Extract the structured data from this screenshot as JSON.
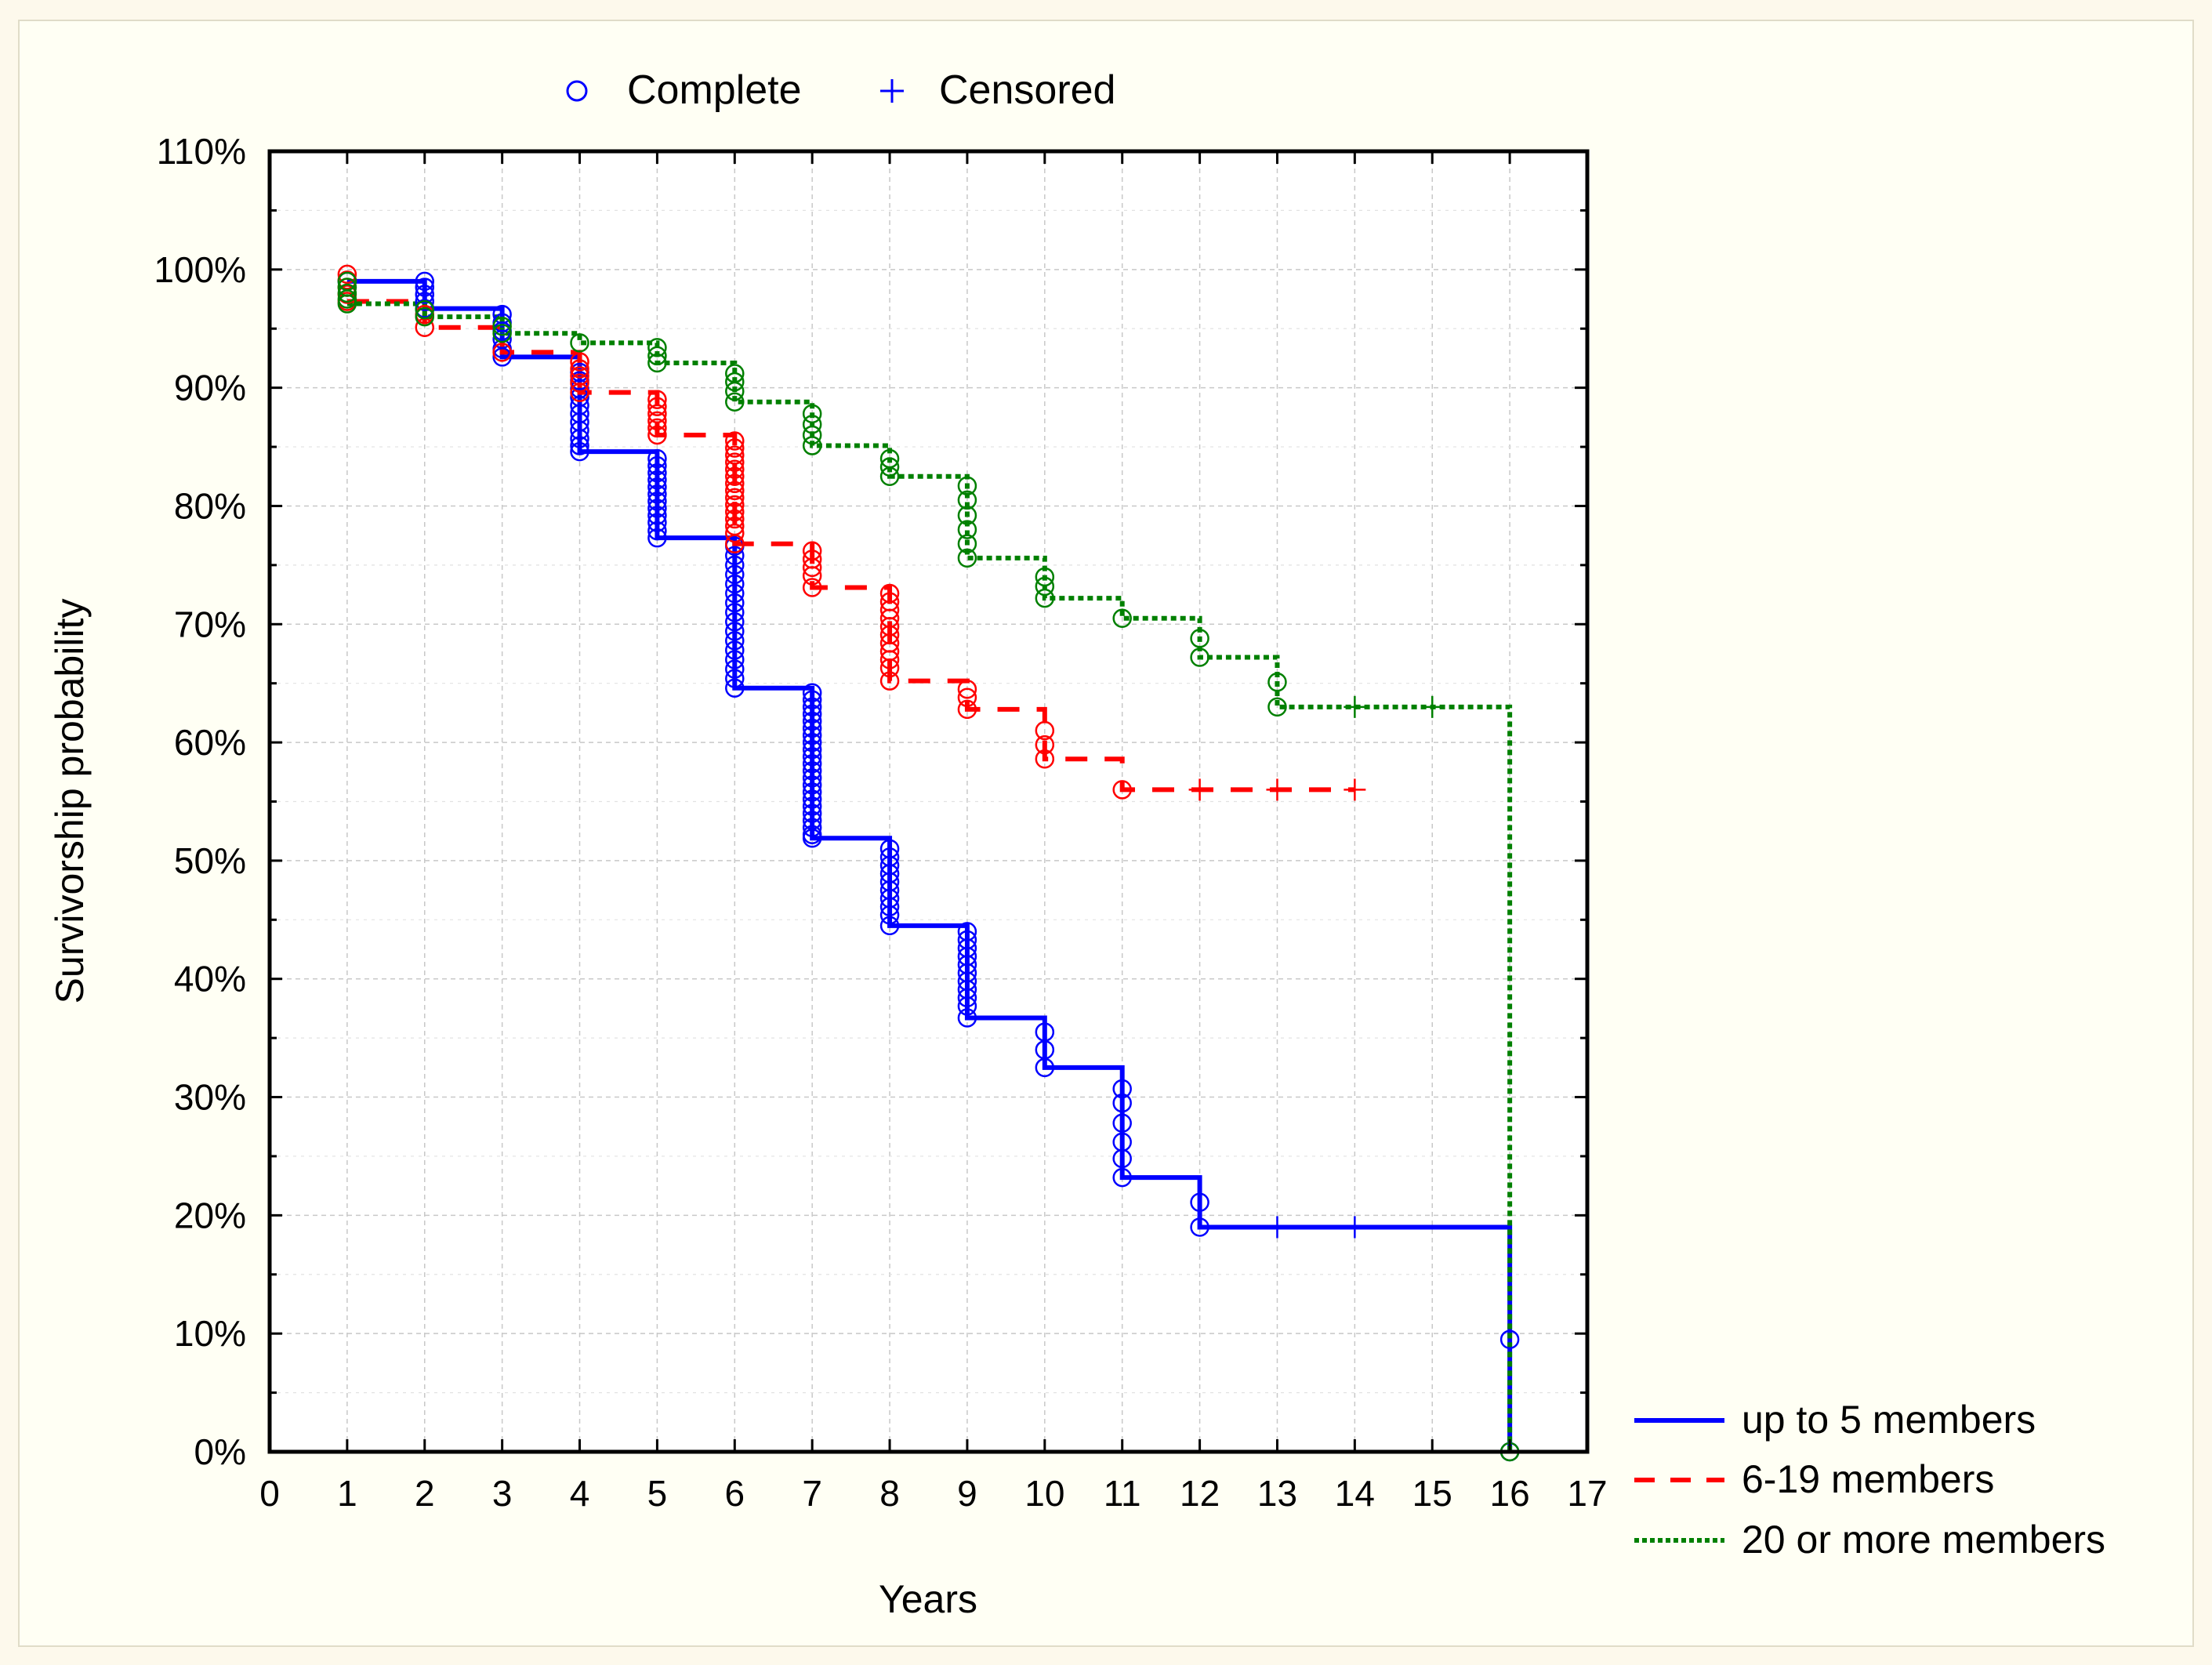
{
  "chart_data": {
    "type": "line",
    "subtype": "kaplan-meier survival (step)",
    "title": "",
    "xlabel": "Years",
    "ylabel": "Survivorship probability",
    "xlim": [
      0,
      17
    ],
    "ylim": [
      0,
      1.1
    ],
    "x_ticks": [
      0,
      1,
      2,
      3,
      4,
      5,
      6,
      7,
      8,
      9,
      10,
      11,
      12,
      13,
      14,
      15,
      16,
      17
    ],
    "y_ticks": [
      0,
      0.1,
      0.2,
      0.3,
      0.4,
      0.5,
      0.6,
      0.7,
      0.8,
      0.9,
      1.0,
      1.1
    ],
    "y_tick_labels": [
      "0%",
      "10%",
      "20%",
      "30%",
      "40%",
      "50%",
      "60%",
      "70%",
      "80%",
      "90%",
      "100%",
      "110%"
    ],
    "grid": true,
    "legend_markers": {
      "complete": "Complete",
      "censored": "Censored",
      "placement": "top"
    },
    "series_legend_placement": "bottom-right",
    "series": [
      {
        "name": "up to 5 members",
        "color": "#0000ff",
        "line_style": "solid",
        "steps": [
          [
            1,
            0.99
          ],
          [
            2,
            0.967
          ],
          [
            3,
            0.926
          ],
          [
            4,
            0.846
          ],
          [
            5,
            0.773
          ],
          [
            6,
            0.646
          ],
          [
            7,
            0.519
          ],
          [
            8,
            0.445
          ],
          [
            9,
            0.367
          ],
          [
            10,
            0.325
          ],
          [
            11,
            0.232
          ],
          [
            12,
            0.19
          ],
          [
            16,
            0.0
          ]
        ],
        "complete": [
          [
            1,
            0.99
          ],
          [
            2,
            0.99
          ],
          [
            2,
            0.985
          ],
          [
            2,
            0.979
          ],
          [
            2,
            0.973
          ],
          [
            2,
            0.967
          ],
          [
            3,
            0.962
          ],
          [
            3,
            0.955
          ],
          [
            3,
            0.948
          ],
          [
            3,
            0.941
          ],
          [
            3,
            0.933
          ],
          [
            3,
            0.926
          ],
          [
            4,
            0.913
          ],
          [
            4,
            0.906
          ],
          [
            4,
            0.899
          ],
          [
            4,
            0.892
          ],
          [
            4,
            0.885
          ],
          [
            4,
            0.878
          ],
          [
            4,
            0.871
          ],
          [
            4,
            0.864
          ],
          [
            4,
            0.857
          ],
          [
            4,
            0.851
          ],
          [
            4,
            0.846
          ],
          [
            5,
            0.84
          ],
          [
            5,
            0.834
          ],
          [
            5,
            0.828
          ],
          [
            5,
            0.822
          ],
          [
            5,
            0.816
          ],
          [
            5,
            0.81
          ],
          [
            5,
            0.804
          ],
          [
            5,
            0.798
          ],
          [
            5,
            0.792
          ],
          [
            5,
            0.786
          ],
          [
            5,
            0.779
          ],
          [
            5,
            0.773
          ],
          [
            6,
            0.766
          ],
          [
            6,
            0.758
          ],
          [
            6,
            0.75
          ],
          [
            6,
            0.742
          ],
          [
            6,
            0.734
          ],
          [
            6,
            0.726
          ],
          [
            6,
            0.718
          ],
          [
            6,
            0.71
          ],
          [
            6,
            0.702
          ],
          [
            6,
            0.694
          ],
          [
            6,
            0.686
          ],
          [
            6,
            0.678
          ],
          [
            6,
            0.67
          ],
          [
            6,
            0.662
          ],
          [
            6,
            0.654
          ],
          [
            6,
            0.646
          ],
          [
            7,
            0.642
          ],
          [
            7,
            0.636
          ],
          [
            7,
            0.63
          ],
          [
            7,
            0.624
          ],
          [
            7,
            0.618
          ],
          [
            7,
            0.612
          ],
          [
            7,
            0.606
          ],
          [
            7,
            0.6
          ],
          [
            7,
            0.594
          ],
          [
            7,
            0.588
          ],
          [
            7,
            0.582
          ],
          [
            7,
            0.576
          ],
          [
            7,
            0.57
          ],
          [
            7,
            0.564
          ],
          [
            7,
            0.558
          ],
          [
            7,
            0.552
          ],
          [
            7,
            0.546
          ],
          [
            7,
            0.54
          ],
          [
            7,
            0.534
          ],
          [
            7,
            0.528
          ],
          [
            7,
            0.522
          ],
          [
            7,
            0.519
          ],
          [
            8,
            0.51
          ],
          [
            8,
            0.503
          ],
          [
            8,
            0.496
          ],
          [
            8,
            0.489
          ],
          [
            8,
            0.482
          ],
          [
            8,
            0.475
          ],
          [
            8,
            0.468
          ],
          [
            8,
            0.461
          ],
          [
            8,
            0.454
          ],
          [
            8,
            0.445
          ],
          [
            9,
            0.44
          ],
          [
            9,
            0.433
          ],
          [
            9,
            0.426
          ],
          [
            9,
            0.419
          ],
          [
            9,
            0.412
          ],
          [
            9,
            0.405
          ],
          [
            9,
            0.398
          ],
          [
            9,
            0.391
          ],
          [
            9,
            0.384
          ],
          [
            9,
            0.377
          ],
          [
            9,
            0.367
          ],
          [
            10,
            0.355
          ],
          [
            10,
            0.34
          ],
          [
            10,
            0.325
          ],
          [
            11,
            0.307
          ],
          [
            11,
            0.295
          ],
          [
            11,
            0.278
          ],
          [
            11,
            0.262
          ],
          [
            11,
            0.248
          ],
          [
            11,
            0.232
          ],
          [
            12,
            0.211
          ],
          [
            12,
            0.19
          ],
          [
            16,
            0.095
          ],
          [
            16,
            0.0
          ]
        ],
        "censored": [
          [
            13,
            0.19
          ],
          [
            14,
            0.19
          ]
        ]
      },
      {
        "name": "6-19 members",
        "color": "#ff0000",
        "line_style": "dashed",
        "steps": [
          [
            1,
            0.973
          ],
          [
            2,
            0.951
          ],
          [
            3,
            0.93
          ],
          [
            4,
            0.896
          ],
          [
            5,
            0.86
          ],
          [
            6,
            0.768
          ],
          [
            7,
            0.731
          ],
          [
            8,
            0.652
          ],
          [
            9,
            0.628
          ],
          [
            10,
            0.586
          ],
          [
            11,
            0.56
          ]
        ],
        "complete": [
          [
            1,
            0.996
          ],
          [
            1,
            0.991
          ],
          [
            1,
            0.985
          ],
          [
            1,
            0.979
          ],
          [
            1,
            0.973
          ],
          [
            2,
            0.962
          ],
          [
            2,
            0.951
          ],
          [
            3,
            0.93
          ],
          [
            4,
            0.922
          ],
          [
            4,
            0.916
          ],
          [
            4,
            0.91
          ],
          [
            4,
            0.904
          ],
          [
            4,
            0.896
          ],
          [
            5,
            0.89
          ],
          [
            5,
            0.884
          ],
          [
            5,
            0.878
          ],
          [
            5,
            0.872
          ],
          [
            5,
            0.866
          ],
          [
            5,
            0.86
          ],
          [
            6,
            0.855
          ],
          [
            6,
            0.849
          ],
          [
            6,
            0.843
          ],
          [
            6,
            0.837
          ],
          [
            6,
            0.831
          ],
          [
            6,
            0.825
          ],
          [
            6,
            0.819
          ],
          [
            6,
            0.813
          ],
          [
            6,
            0.807
          ],
          [
            6,
            0.801
          ],
          [
            6,
            0.795
          ],
          [
            6,
            0.789
          ],
          [
            6,
            0.783
          ],
          [
            6,
            0.777
          ],
          [
            6,
            0.768
          ],
          [
            7,
            0.762
          ],
          [
            7,
            0.755
          ],
          [
            7,
            0.748
          ],
          [
            7,
            0.741
          ],
          [
            7,
            0.731
          ],
          [
            8,
            0.726
          ],
          [
            8,
            0.719
          ],
          [
            8,
            0.712
          ],
          [
            8,
            0.705
          ],
          [
            8,
            0.698
          ],
          [
            8,
            0.691
          ],
          [
            8,
            0.684
          ],
          [
            8,
            0.677
          ],
          [
            8,
            0.67
          ],
          [
            8,
            0.663
          ],
          [
            8,
            0.652
          ],
          [
            9,
            0.645
          ],
          [
            9,
            0.638
          ],
          [
            9,
            0.628
          ],
          [
            10,
            0.61
          ],
          [
            10,
            0.598
          ],
          [
            10,
            0.586
          ],
          [
            11,
            0.56
          ]
        ],
        "censored": [
          [
            12,
            0.56
          ],
          [
            13,
            0.56
          ],
          [
            14,
            0.56
          ]
        ]
      },
      {
        "name": "20 or more members",
        "color": "#008000",
        "line_style": "dotted",
        "steps": [
          [
            1,
            0.971
          ],
          [
            2,
            0.96
          ],
          [
            3,
            0.946
          ],
          [
            4,
            0.938
          ],
          [
            5,
            0.921
          ],
          [
            6,
            0.888
          ],
          [
            7,
            0.851
          ],
          [
            8,
            0.825
          ],
          [
            9,
            0.756
          ],
          [
            10,
            0.722
          ],
          [
            11,
            0.705
          ],
          [
            12,
            0.672
          ],
          [
            13,
            0.63
          ],
          [
            16,
            0.0
          ]
        ],
        "complete": [
          [
            1,
            0.99
          ],
          [
            1,
            0.985
          ],
          [
            1,
            0.98
          ],
          [
            1,
            0.975
          ],
          [
            1,
            0.971
          ],
          [
            2,
            0.966
          ],
          [
            2,
            0.96
          ],
          [
            3,
            0.952
          ],
          [
            3,
            0.946
          ],
          [
            4,
            0.938
          ],
          [
            5,
            0.934
          ],
          [
            5,
            0.927
          ],
          [
            5,
            0.921
          ],
          [
            6,
            0.912
          ],
          [
            6,
            0.905
          ],
          [
            6,
            0.897
          ],
          [
            6,
            0.888
          ],
          [
            7,
            0.878
          ],
          [
            7,
            0.869
          ],
          [
            7,
            0.86
          ],
          [
            7,
            0.851
          ],
          [
            8,
            0.84
          ],
          [
            8,
            0.833
          ],
          [
            8,
            0.825
          ],
          [
            9,
            0.817
          ],
          [
            9,
            0.805
          ],
          [
            9,
            0.792
          ],
          [
            9,
            0.78
          ],
          [
            9,
            0.768
          ],
          [
            9,
            0.756
          ],
          [
            10,
            0.74
          ],
          [
            10,
            0.732
          ],
          [
            10,
            0.722
          ],
          [
            11,
            0.705
          ],
          [
            12,
            0.688
          ],
          [
            12,
            0.672
          ],
          [
            13,
            0.651
          ],
          [
            13,
            0.63
          ],
          [
            16,
            0.0
          ]
        ],
        "censored": [
          [
            14,
            0.63
          ],
          [
            15,
            0.63
          ]
        ]
      }
    ]
  }
}
